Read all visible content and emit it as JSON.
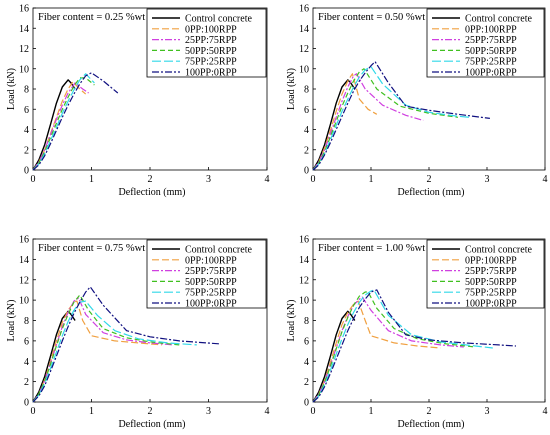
{
  "colors": {
    "Control concrete": "#000000",
    "0PP:100RPP": "#f0a040",
    "25PP:75RPP": "#d040e0",
    "50PP:50RPP": "#40c020",
    "75PP:25RPP": "#30d8e8",
    "100PP:0RPP": "#101080"
  },
  "chart_data": [
    {
      "type": "line",
      "title": "Fiber content = 0.25 %wt",
      "xlabel": "Deflection (mm)",
      "ylabel": "Load (kN)",
      "xlim": [
        0,
        4
      ],
      "ylim": [
        0,
        16
      ],
      "xticks": [
        0,
        1,
        2,
        3,
        4
      ],
      "yticks": [
        0,
        2,
        4,
        6,
        8,
        10,
        12,
        14,
        16
      ],
      "legend_position": "top-right",
      "series": [
        {
          "name": "Control concrete",
          "dash": "solid",
          "x": [
            0,
            0.1,
            0.2,
            0.3,
            0.4,
            0.5,
            0.6,
            0.65,
            0.72
          ],
          "y": [
            0,
            1.0,
            2.5,
            4.5,
            6.6,
            8.2,
            8.9,
            8.6,
            8.0
          ]
        },
        {
          "name": "0PP:100RPP",
          "dash": "long",
          "x": [
            0,
            0.1,
            0.2,
            0.3,
            0.4,
            0.5,
            0.6,
            0.68,
            0.8,
            0.9
          ],
          "y": [
            0,
            0.8,
            2.0,
            3.6,
            5.2,
            6.8,
            8.0,
            8.7,
            8.0,
            7.5
          ]
        },
        {
          "name": "25PP:75RPP",
          "dash": "dashdot",
          "x": [
            0,
            0.1,
            0.2,
            0.3,
            0.4,
            0.5,
            0.6,
            0.72,
            0.85,
            0.95
          ],
          "y": [
            0,
            0.8,
            2.0,
            3.5,
            5.0,
            6.4,
            7.6,
            8.6,
            8.0,
            7.6
          ]
        },
        {
          "name": "50PP:50RPP",
          "dash": "dash",
          "x": [
            0,
            0.1,
            0.2,
            0.3,
            0.4,
            0.5,
            0.6,
            0.7,
            0.8,
            0.9,
            1.05
          ],
          "y": [
            0,
            0.7,
            1.8,
            3.2,
            4.6,
            6.0,
            7.2,
            8.3,
            9.1,
            9.1,
            8.4
          ]
        },
        {
          "name": "75PP:25RPP",
          "dash": "longdash",
          "x": [
            0,
            0.1,
            0.2,
            0.3,
            0.4,
            0.5,
            0.6,
            0.7,
            0.8,
            0.9,
            1.05
          ],
          "y": [
            0,
            0.6,
            1.6,
            2.9,
            4.2,
            5.6,
            6.8,
            7.9,
            8.9,
            9.5,
            8.6
          ]
        },
        {
          "name": "100PP:0RPP",
          "dash": "dashdot",
          "x": [
            0,
            0.1,
            0.2,
            0.3,
            0.4,
            0.5,
            0.6,
            0.7,
            0.8,
            0.9,
            1.0,
            1.2,
            1.45
          ],
          "y": [
            0,
            0.5,
            1.4,
            2.6,
            3.9,
            5.2,
            6.4,
            7.5,
            8.5,
            9.3,
            9.6,
            8.8,
            7.6
          ]
        }
      ]
    },
    {
      "type": "line",
      "title": "Fiber content = 0.50 %wt",
      "xlabel": "Deflection (mm)",
      "ylabel": "Load (kN)",
      "xlim": [
        0,
        4
      ],
      "ylim": [
        0,
        16
      ],
      "xticks": [
        0,
        1,
        2,
        3,
        4
      ],
      "yticks": [
        0,
        2,
        4,
        6,
        8,
        10,
        12,
        14,
        16
      ],
      "legend_position": "top-right",
      "series": [
        {
          "name": "Control concrete",
          "dash": "solid",
          "x": [
            0,
            0.1,
            0.2,
            0.3,
            0.4,
            0.5,
            0.6,
            0.65,
            0.72
          ],
          "y": [
            0,
            1.0,
            2.5,
            4.5,
            6.6,
            8.2,
            8.9,
            8.6,
            8.0
          ]
        },
        {
          "name": "0PP:100RPP",
          "dash": "long",
          "x": [
            0,
            0.1,
            0.2,
            0.3,
            0.4,
            0.5,
            0.6,
            0.68,
            0.8,
            0.95,
            1.1
          ],
          "y": [
            0,
            0.8,
            2.2,
            3.9,
            5.8,
            7.5,
            8.8,
            9.5,
            7.0,
            6.0,
            5.5
          ]
        },
        {
          "name": "25PP:75RPP",
          "dash": "dashdot",
          "x": [
            0,
            0.1,
            0.2,
            0.3,
            0.4,
            0.5,
            0.6,
            0.7,
            0.75,
            0.9,
            1.2,
            1.6,
            1.9
          ],
          "y": [
            0,
            0.8,
            2.0,
            3.6,
            5.2,
            6.8,
            8.2,
            9.3,
            9.5,
            8.0,
            6.4,
            5.4,
            4.9
          ]
        },
        {
          "name": "50PP:50RPP",
          "dash": "dash",
          "x": [
            0,
            0.1,
            0.2,
            0.3,
            0.4,
            0.5,
            0.6,
            0.7,
            0.8,
            0.88,
            1.1,
            1.5,
            2.0,
            2.5
          ],
          "y": [
            0,
            0.7,
            1.8,
            3.3,
            4.8,
            6.3,
            7.6,
            8.8,
            9.7,
            10.0,
            8.0,
            6.3,
            5.6,
            5.2
          ]
        },
        {
          "name": "75PP:25RPP",
          "dash": "longdash",
          "x": [
            0,
            0.1,
            0.2,
            0.3,
            0.4,
            0.5,
            0.6,
            0.7,
            0.8,
            0.9,
            1.0,
            1.2,
            1.6,
            2.0,
            2.5,
            2.7
          ],
          "y": [
            0,
            0.6,
            1.6,
            3.0,
            4.4,
            5.8,
            7.0,
            8.2,
            9.2,
            9.9,
            10.2,
            8.5,
            6.4,
            5.7,
            5.3,
            5.2
          ]
        },
        {
          "name": "100PP:0RPP",
          "dash": "dashdot",
          "x": [
            0,
            0.1,
            0.2,
            0.3,
            0.4,
            0.5,
            0.6,
            0.7,
            0.8,
            0.9,
            1.0,
            1.07,
            1.3,
            1.6,
            2.0,
            2.5,
            3.05
          ],
          "y": [
            0,
            0.5,
            1.5,
            2.7,
            4.0,
            5.3,
            6.6,
            7.8,
            8.8,
            9.6,
            10.3,
            10.7,
            8.6,
            6.3,
            5.9,
            5.5,
            5.1
          ]
        }
      ]
    },
    {
      "type": "line",
      "title": "Fiber content = 0.75 %wt",
      "xlabel": "Deflection (mm)",
      "ylabel": "Load (kN)",
      "xlim": [
        0,
        4
      ],
      "ylim": [
        0,
        16
      ],
      "xticks": [
        0,
        1,
        2,
        3,
        4
      ],
      "yticks": [
        0,
        2,
        4,
        6,
        8,
        10,
        12,
        14,
        16
      ],
      "legend_position": "top-right",
      "series": [
        {
          "name": "Control concrete",
          "dash": "solid",
          "x": [
            0,
            0.1,
            0.2,
            0.3,
            0.4,
            0.5,
            0.6,
            0.65,
            0.72
          ],
          "y": [
            0,
            1.0,
            2.5,
            4.5,
            6.6,
            8.2,
            8.9,
            8.6,
            8.0
          ]
        },
        {
          "name": "0PP:100RPP",
          "dash": "long",
          "x": [
            0,
            0.1,
            0.2,
            0.3,
            0.4,
            0.5,
            0.6,
            0.7,
            0.75,
            0.85,
            1.0,
            1.4,
            1.8,
            2.2
          ],
          "y": [
            0,
            0.8,
            2.2,
            4.0,
            6.0,
            7.8,
            9.0,
            9.8,
            9.9,
            8.0,
            6.5,
            6.0,
            5.8,
            5.6
          ]
        },
        {
          "name": "25PP:75RPP",
          "dash": "dashdot",
          "x": [
            0,
            0.1,
            0.2,
            0.3,
            0.4,
            0.5,
            0.6,
            0.7,
            0.78,
            0.9,
            1.2,
            1.6,
            2.0,
            2.4
          ],
          "y": [
            0,
            0.8,
            2.1,
            3.8,
            5.6,
            7.4,
            8.8,
            9.9,
            10.2,
            8.6,
            6.8,
            6.1,
            5.8,
            5.6
          ]
        },
        {
          "name": "50PP:50RPP",
          "dash": "dash",
          "x": [
            0,
            0.1,
            0.2,
            0.3,
            0.4,
            0.5,
            0.6,
            0.7,
            0.8,
            0.95,
            1.2,
            1.6,
            2.0,
            2.5
          ],
          "y": [
            0,
            0.8,
            2.0,
            3.7,
            5.5,
            7.2,
            8.6,
            9.8,
            10.5,
            9.0,
            7.2,
            6.3,
            5.9,
            5.6
          ]
        },
        {
          "name": "75PP:25RPP",
          "dash": "longdash",
          "x": [
            0,
            0.1,
            0.2,
            0.3,
            0.4,
            0.5,
            0.6,
            0.7,
            0.8,
            0.9,
            1.1,
            1.4,
            1.8,
            2.3,
            2.8
          ],
          "y": [
            0,
            0.7,
            1.8,
            3.3,
            4.9,
            6.5,
            7.9,
            9.0,
            9.8,
            9.9,
            8.5,
            7.0,
            6.2,
            5.8,
            5.6
          ]
        },
        {
          "name": "100PP:0RPP",
          "dash": "dashdot",
          "x": [
            0,
            0.1,
            0.2,
            0.3,
            0.4,
            0.5,
            0.6,
            0.7,
            0.8,
            0.9,
            0.98,
            1.2,
            1.6,
            2.0,
            2.5,
            3.2
          ],
          "y": [
            0,
            0.6,
            1.6,
            3.0,
            4.5,
            6.0,
            7.4,
            8.7,
            9.8,
            10.8,
            11.3,
            9.5,
            7.0,
            6.4,
            6.0,
            5.7
          ]
        }
      ]
    },
    {
      "type": "line",
      "title": "Fiber content = 1.00 %wt",
      "xlabel": "Deflection (mm)",
      "ylabel": "Load (kN)",
      "xlim": [
        0,
        4
      ],
      "ylim": [
        0,
        16
      ],
      "xticks": [
        0,
        1,
        2,
        3,
        4
      ],
      "yticks": [
        0,
        2,
        4,
        6,
        8,
        10,
        12,
        14,
        16
      ],
      "legend_position": "top-right",
      "series": [
        {
          "name": "Control concrete",
          "dash": "solid",
          "x": [
            0,
            0.1,
            0.2,
            0.3,
            0.4,
            0.5,
            0.6,
            0.65,
            0.72
          ],
          "y": [
            0,
            1.0,
            2.5,
            4.5,
            6.6,
            8.2,
            8.9,
            8.6,
            8.0
          ]
        },
        {
          "name": "0PP:100RPP",
          "dash": "long",
          "x": [
            0,
            0.1,
            0.2,
            0.3,
            0.4,
            0.5,
            0.6,
            0.7,
            0.78,
            0.9,
            1.0,
            1.4,
            1.8,
            2.2
          ],
          "y": [
            0,
            0.8,
            2.1,
            3.9,
            5.8,
            7.6,
            8.8,
            9.6,
            9.9,
            8.0,
            6.5,
            5.8,
            5.5,
            5.3
          ]
        },
        {
          "name": "25PP:75RPP",
          "dash": "dashdot",
          "x": [
            0,
            0.1,
            0.2,
            0.3,
            0.4,
            0.5,
            0.6,
            0.7,
            0.8,
            0.85,
            1.0,
            1.3,
            1.7,
            2.2,
            2.6
          ],
          "y": [
            0,
            0.8,
            2.0,
            3.6,
            5.3,
            7.0,
            8.4,
            9.5,
            10.1,
            10.3,
            9.0,
            7.0,
            6.0,
            5.6,
            5.4
          ]
        },
        {
          "name": "50PP:50RPP",
          "dash": "dash",
          "x": [
            0,
            0.1,
            0.2,
            0.3,
            0.4,
            0.5,
            0.6,
            0.7,
            0.8,
            0.9,
            0.95,
            1.1,
            1.4,
            1.8,
            2.3,
            2.8
          ],
          "y": [
            0,
            0.7,
            1.9,
            3.5,
            5.2,
            6.9,
            8.3,
            9.5,
            10.4,
            10.8,
            10.8,
            9.2,
            7.2,
            6.2,
            5.7,
            5.4
          ]
        },
        {
          "name": "75PP:25RPP",
          "dash": "longdash",
          "x": [
            0,
            0.1,
            0.2,
            0.3,
            0.4,
            0.5,
            0.6,
            0.7,
            0.8,
            0.9,
            1.0,
            1.05,
            1.3,
            1.7,
            2.2,
            2.8,
            3.1
          ],
          "y": [
            0,
            0.6,
            1.7,
            3.1,
            4.7,
            6.2,
            7.6,
            8.8,
            9.8,
            10.5,
            10.9,
            11.0,
            8.5,
            6.6,
            5.9,
            5.5,
            5.3
          ]
        },
        {
          "name": "100PP:0RPP",
          "dash": "dashdot",
          "x": [
            0,
            0.1,
            0.2,
            0.3,
            0.4,
            0.5,
            0.6,
            0.7,
            0.8,
            0.9,
            1.0,
            1.1,
            1.3,
            1.6,
            2.0,
            2.6,
            3.2,
            3.5
          ],
          "y": [
            0,
            0.5,
            1.5,
            2.8,
            4.2,
            5.6,
            7.0,
            8.2,
            9.3,
            10.1,
            10.8,
            11.0,
            8.8,
            6.6,
            6.1,
            5.8,
            5.6,
            5.5
          ]
        }
      ]
    }
  ]
}
